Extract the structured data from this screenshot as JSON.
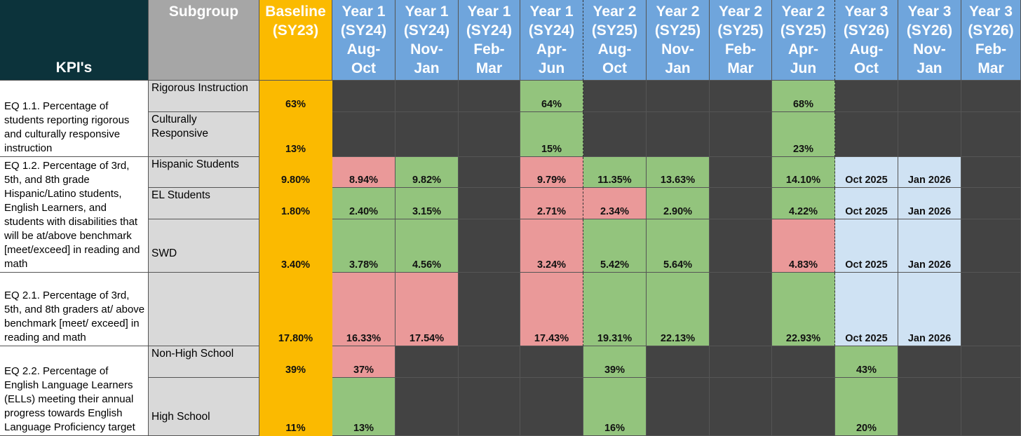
{
  "headers": {
    "kpi": "KPI's",
    "subgroup": "Subgroup",
    "baseline": "Baseline\n(SY23)",
    "periods": [
      "Year 1\n(SY24)\nAug-\nOct",
      "Year 1\n(SY24)\nNov-\nJan",
      "Year 1\n(SY24)\nFeb-\nMar",
      "Year 1\n(SY24)\nApr-\nJun",
      "Year 2\n(SY25)\nAug-\nOct",
      "Year 2\n(SY25)\nNov-\nJan",
      "Year 2\n(SY25)\nFeb-\nMar",
      "Year 2\n(SY25)\nApr-\nJun",
      "Year 3\n(SY26)\nAug-\nOct",
      "Year 3\n(SY26)\nNov-\nJan",
      "Year 3\n(SY26)\nFeb-\nMar"
    ]
  },
  "kpis": [
    "EQ 1.1. Percentage of students reporting rigorous and culturally responsive instruction",
    "EQ 1.2. Percentage of 3rd, 5th, and 8th grade Hispanic/Latino students, English Learners, and students with disabilities that will be at/above benchmark [meet/exceed] in reading and math",
    "EQ 2.1. Percentage of 3rd, 5th, and 8th graders at/ above benchmark [meet/ exceed] in reading and math",
    "EQ 2.2. Percentage of English Language Learners (ELLs) meeting their annual progress towards English Language Proficiency target"
  ],
  "subgroups": [
    "Rigorous Instruction",
    "Culturally Responsive",
    "Hispanic Students",
    "EL Students",
    "SWD",
    "",
    "Non-High School",
    "High School"
  ],
  "baselines": [
    "63%",
    "13%",
    "9.80%",
    "1.80%",
    "3.40%",
    "17.80%",
    "39%",
    "11%"
  ],
  "values": [
    [
      "",
      "",
      "",
      "64%",
      "",
      "",
      "",
      "68%",
      "",
      "",
      ""
    ],
    [
      "",
      "",
      "",
      "15%",
      "",
      "",
      "",
      "23%",
      "",
      "",
      ""
    ],
    [
      "8.94%",
      "9.82%",
      "",
      "9.79%",
      "11.35%",
      "13.63%",
      "",
      "14.10%",
      "Oct 2025",
      "Jan 2026",
      ""
    ],
    [
      "2.40%",
      "3.15%",
      "",
      "2.71%",
      "2.34%",
      "2.90%",
      "",
      "4.22%",
      "Oct 2025",
      "Jan 2026",
      ""
    ],
    [
      "3.78%",
      "4.56%",
      "",
      "3.24%",
      "5.42%",
      "5.64%",
      "",
      "4.83%",
      "Oct 2025",
      "Jan 2026",
      ""
    ],
    [
      "16.33%",
      "17.54%",
      "",
      "17.43%",
      "19.31%",
      "22.13%",
      "",
      "22.93%",
      "Oct 2025",
      "Jan 2026",
      ""
    ],
    [
      "37%",
      "",
      "",
      "",
      "39%",
      "",
      "",
      "",
      "43%",
      "",
      ""
    ],
    [
      "13%",
      "",
      "",
      "",
      "16%",
      "",
      "",
      "",
      "20%",
      "",
      ""
    ]
  ],
  "status": [
    [
      "dark",
      "dark",
      "dark",
      "green",
      "dark",
      "dark",
      "dark",
      "green",
      "dark",
      "dark",
      "dark"
    ],
    [
      "dark",
      "dark",
      "dark",
      "green",
      "dark",
      "dark",
      "dark",
      "green",
      "dark",
      "dark",
      "dark"
    ],
    [
      "red",
      "green",
      "dark",
      "red",
      "green",
      "green",
      "dark",
      "green",
      "pending",
      "pending",
      "dark"
    ],
    [
      "green",
      "green",
      "dark",
      "red",
      "red",
      "green",
      "dark",
      "green",
      "pending",
      "pending",
      "dark"
    ],
    [
      "green",
      "green",
      "dark",
      "red",
      "green",
      "green",
      "dark",
      "red",
      "pending",
      "pending",
      "dark"
    ],
    [
      "red",
      "red",
      "dark",
      "red",
      "green",
      "green",
      "dark",
      "green",
      "pending",
      "pending",
      "dark"
    ],
    [
      "red",
      "dark",
      "dark",
      "dark",
      "green",
      "dark",
      "dark",
      "dark",
      "green",
      "dark",
      "dark"
    ],
    [
      "green",
      "dark",
      "dark",
      "dark",
      "green",
      "dark",
      "dark",
      "dark",
      "green",
      "dark",
      "dark"
    ]
  ],
  "colors": {
    "header_kpi": "#0c333b",
    "header_subgroup": "#a6a6a6",
    "baseline": "#fbba00",
    "header_period": "#6fa5dc",
    "green": "#93c47d",
    "red": "#ea9999",
    "pending": "#cfe2f3",
    "dark": "#434343"
  }
}
